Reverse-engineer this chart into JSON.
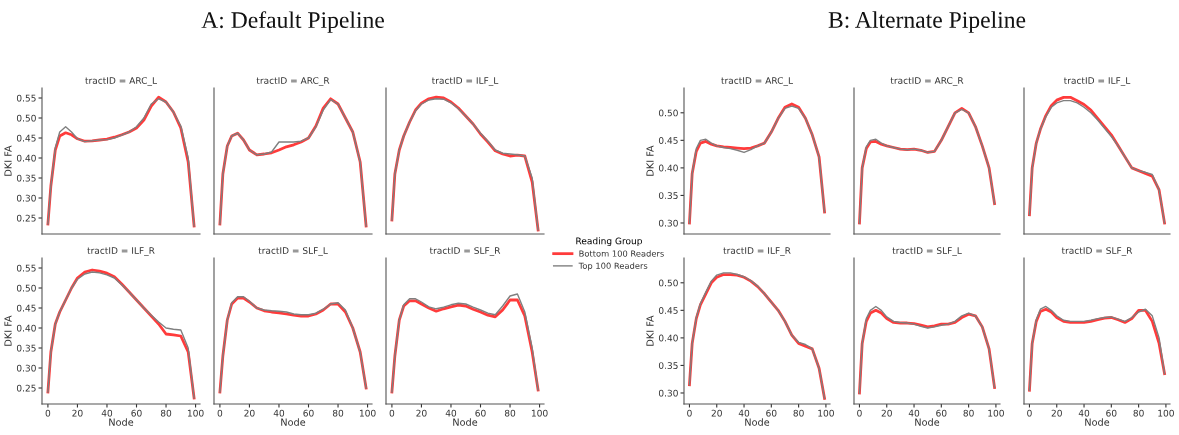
{
  "chart_data": [
    {
      "type": "line",
      "title": "tractID = ARC_L",
      "annotations": [
        "A: Default Pipeline"
      ],
      "ylabel": "DKI FA",
      "x": [
        0,
        2,
        5,
        8,
        12,
        16,
        20,
        25,
        30,
        35,
        40,
        45,
        50,
        55,
        60,
        65,
        70,
        75,
        80,
        85,
        90,
        95,
        99
      ],
      "xlim": [
        -4,
        103
      ],
      "ylim": [
        0.21,
        0.575
      ],
      "yticks": [
        {
          "value": 0.25,
          "label": "0.25"
        },
        {
          "value": 0.3,
          "label": "0.30"
        },
        {
          "value": 0.35,
          "label": "0.35"
        },
        {
          "value": 0.4,
          "label": "0.40"
        },
        {
          "value": 0.45,
          "label": "0.45"
        },
        {
          "value": 0.5,
          "label": "0.50"
        },
        {
          "value": 0.55,
          "label": "0.55"
        }
      ],
      "tick_labels": "y",
      "grid": false,
      "series": [
        {
          "color": "#ff3b3b",
          "values": [
            0.235,
            0.33,
            0.42,
            0.455,
            0.463,
            0.458,
            0.448,
            0.442,
            0.443,
            0.445,
            0.447,
            0.452,
            0.458,
            0.465,
            0.475,
            0.495,
            0.53,
            0.552,
            0.54,
            0.515,
            0.475,
            0.39,
            0.23
          ]
        },
        {
          "color": "#7f7f7f",
          "values": [
            0.235,
            0.33,
            0.425,
            0.465,
            0.478,
            0.465,
            0.448,
            0.441,
            0.443,
            0.445,
            0.446,
            0.45,
            0.457,
            0.465,
            0.478,
            0.5,
            0.535,
            0.548,
            0.54,
            0.515,
            0.48,
            0.4,
            0.23
          ]
        }
      ]
    },
    {
      "type": "line",
      "title": "tractID = ARC_R",
      "x": [
        0,
        2,
        5,
        8,
        12,
        16,
        20,
        25,
        30,
        35,
        40,
        45,
        50,
        55,
        60,
        65,
        70,
        75,
        80,
        85,
        90,
        95,
        99
      ],
      "xlim": [
        -4,
        103
      ],
      "ylim": [
        0.21,
        0.575
      ],
      "tick_labels": false,
      "grid": false,
      "series": [
        {
          "color": "#ff3b3b",
          "values": [
            0.235,
            0.36,
            0.43,
            0.455,
            0.462,
            0.445,
            0.42,
            0.408,
            0.41,
            0.413,
            0.42,
            0.428,
            0.433,
            0.44,
            0.45,
            0.48,
            0.525,
            0.548,
            0.535,
            0.5,
            0.465,
            0.39,
            0.23
          ]
        },
        {
          "color": "#7f7f7f",
          "values": [
            0.235,
            0.36,
            0.43,
            0.455,
            0.462,
            0.445,
            0.42,
            0.408,
            0.41,
            0.415,
            0.44,
            0.44,
            0.44,
            0.442,
            0.45,
            0.478,
            0.52,
            0.546,
            0.535,
            0.5,
            0.465,
            0.39,
            0.23
          ]
        }
      ]
    },
    {
      "type": "line",
      "title": "tractID = ILF_L",
      "legend": "right",
      "legend_title": "Reading Group",
      "x": [
        0,
        2,
        5,
        8,
        12,
        16,
        20,
        25,
        30,
        35,
        40,
        45,
        50,
        55,
        60,
        65,
        70,
        75,
        80,
        85,
        90,
        95,
        99
      ],
      "xlim": [
        -4,
        103
      ],
      "ylim": [
        0.21,
        0.575
      ],
      "tick_labels": false,
      "grid": false,
      "series": [
        {
          "name": "Bottom 100 Readers",
          "color": "#ff3b3b",
          "values": [
            0.245,
            0.36,
            0.42,
            0.455,
            0.49,
            0.52,
            0.537,
            0.548,
            0.552,
            0.55,
            0.54,
            0.525,
            0.505,
            0.485,
            0.46,
            0.44,
            0.418,
            0.41,
            0.405,
            0.407,
            0.405,
            0.34,
            0.22
          ]
        },
        {
          "name": "Top 100 Readers",
          "color": "#7f7f7f",
          "values": [
            0.245,
            0.36,
            0.42,
            0.455,
            0.49,
            0.518,
            0.535,
            0.545,
            0.548,
            0.547,
            0.538,
            0.523,
            0.505,
            0.485,
            0.462,
            0.442,
            0.42,
            0.412,
            0.41,
            0.408,
            0.405,
            0.35,
            0.22
          ]
        }
      ]
    },
    {
      "type": "line",
      "title": "tractID = ILF_R",
      "ylabel": "DKI FA",
      "xlabel": "Node",
      "x": [
        0,
        2,
        5,
        8,
        12,
        16,
        20,
        25,
        30,
        35,
        40,
        45,
        50,
        55,
        60,
        65,
        70,
        75,
        80,
        85,
        90,
        95,
        99
      ],
      "xlim": [
        -4,
        103
      ],
      "xticks": [
        0,
        20,
        40,
        60,
        80,
        100
      ],
      "ylim": [
        0.21,
        0.575
      ],
      "yticks": [
        {
          "value": 0.25,
          "label": "0.25"
        },
        {
          "value": 0.3,
          "label": "0.30"
        },
        {
          "value": 0.35,
          "label": "0.35"
        },
        {
          "value": 0.4,
          "label": "0.40"
        },
        {
          "value": 0.45,
          "label": "0.45"
        },
        {
          "value": 0.5,
          "label": "0.50"
        },
        {
          "value": 0.55,
          "label": "0.55"
        }
      ],
      "grid": false,
      "series": [
        {
          "color": "#ff3b3b",
          "values": [
            0.24,
            0.34,
            0.41,
            0.44,
            0.47,
            0.5,
            0.525,
            0.54,
            0.545,
            0.542,
            0.537,
            0.528,
            0.51,
            0.49,
            0.47,
            0.45,
            0.43,
            0.41,
            0.385,
            0.383,
            0.38,
            0.34,
            0.225
          ]
        },
        {
          "color": "#7f7f7f",
          "values": [
            0.24,
            0.34,
            0.41,
            0.44,
            0.47,
            0.5,
            0.522,
            0.535,
            0.54,
            0.538,
            0.533,
            0.525,
            0.508,
            0.49,
            0.47,
            0.45,
            0.432,
            0.415,
            0.4,
            0.397,
            0.395,
            0.35,
            0.225
          ]
        }
      ]
    },
    {
      "type": "line",
      "title": "tractID = SLF_L",
      "xlabel": "Node",
      "x": [
        0,
        2,
        5,
        8,
        12,
        16,
        20,
        25,
        30,
        35,
        40,
        45,
        50,
        55,
        60,
        65,
        70,
        75,
        80,
        85,
        90,
        95,
        99
      ],
      "xlim": [
        -4,
        103
      ],
      "xticks": [
        0,
        20,
        40,
        60,
        80,
        100
      ],
      "ylim": [
        0.21,
        0.575
      ],
      "tick_labels": "x",
      "grid": false,
      "series": [
        {
          "color": "#ff3b3b",
          "values": [
            0.24,
            0.33,
            0.42,
            0.46,
            0.475,
            0.475,
            0.465,
            0.45,
            0.443,
            0.44,
            0.438,
            0.435,
            0.432,
            0.43,
            0.43,
            0.435,
            0.445,
            0.46,
            0.46,
            0.44,
            0.4,
            0.34,
            0.25
          ]
        },
        {
          "color": "#7f7f7f",
          "values": [
            0.24,
            0.33,
            0.42,
            0.463,
            0.478,
            0.478,
            0.467,
            0.45,
            0.445,
            0.443,
            0.442,
            0.44,
            0.435,
            0.433,
            0.433,
            0.437,
            0.447,
            0.46,
            0.463,
            0.445,
            0.4,
            0.34,
            0.25
          ]
        }
      ]
    },
    {
      "type": "line",
      "title": "tractID = SLF_R",
      "xlabel": "Node",
      "x": [
        0,
        2,
        5,
        8,
        12,
        16,
        20,
        25,
        30,
        35,
        40,
        45,
        50,
        55,
        60,
        65,
        70,
        75,
        80,
        85,
        90,
        95,
        99
      ],
      "xlim": [
        -4,
        103
      ],
      "xticks": [
        0,
        20,
        40,
        60,
        80,
        100
      ],
      "ylim": [
        0.21,
        0.575
      ],
      "tick_labels": "x",
      "grid": false,
      "series": [
        {
          "color": "#ff3b3b",
          "values": [
            0.24,
            0.33,
            0.42,
            0.455,
            0.468,
            0.468,
            0.46,
            0.45,
            0.442,
            0.448,
            0.453,
            0.457,
            0.455,
            0.447,
            0.44,
            0.432,
            0.428,
            0.445,
            0.47,
            0.47,
            0.43,
            0.34,
            0.245
          ]
        },
        {
          "color": "#7f7f7f",
          "values": [
            0.24,
            0.33,
            0.42,
            0.458,
            0.473,
            0.473,
            0.465,
            0.453,
            0.448,
            0.452,
            0.458,
            0.462,
            0.46,
            0.452,
            0.445,
            0.437,
            0.433,
            0.455,
            0.48,
            0.485,
            0.44,
            0.35,
            0.245
          ]
        }
      ]
    },
    {
      "type": "line",
      "title": "tractID = ARC_L",
      "annotations": [
        "B: Alternate Pipeline"
      ],
      "ylabel": "DKI FA",
      "x": [
        0,
        2,
        5,
        8,
        12,
        16,
        20,
        25,
        30,
        35,
        40,
        45,
        50,
        55,
        60,
        65,
        70,
        75,
        80,
        85,
        90,
        95,
        99
      ],
      "xlim": [
        -4,
        103
      ],
      "ylim": [
        0.28,
        0.545
      ],
      "yticks": [
        {
          "value": 0.3,
          "label": "0.30"
        },
        {
          "value": 0.35,
          "label": "0.35"
        },
        {
          "value": 0.4,
          "label": "0.40"
        },
        {
          "value": 0.45,
          "label": "0.45"
        },
        {
          "value": 0.5,
          "label": "0.50"
        }
      ],
      "tick_labels": "y",
      "grid": false,
      "series": [
        {
          "color": "#ff3b3b",
          "values": [
            0.3,
            0.39,
            0.43,
            0.445,
            0.448,
            0.443,
            0.44,
            0.438,
            0.437,
            0.436,
            0.435,
            0.436,
            0.44,
            0.445,
            0.465,
            0.49,
            0.51,
            0.516,
            0.51,
            0.49,
            0.46,
            0.42,
            0.32
          ]
        },
        {
          "color": "#7f7f7f",
          "values": [
            0.3,
            0.39,
            0.435,
            0.45,
            0.452,
            0.445,
            0.44,
            0.437,
            0.435,
            0.432,
            0.428,
            0.433,
            0.44,
            0.445,
            0.465,
            0.49,
            0.508,
            0.512,
            0.508,
            0.49,
            0.46,
            0.42,
            0.32
          ]
        }
      ]
    },
    {
      "type": "line",
      "title": "tractID = ARC_R",
      "x": [
        0,
        2,
        5,
        8,
        12,
        16,
        20,
        25,
        30,
        35,
        40,
        45,
        50,
        55,
        60,
        65,
        70,
        75,
        80,
        85,
        90,
        95,
        99
      ],
      "xlim": [
        -4,
        103
      ],
      "ylim": [
        0.28,
        0.545
      ],
      "tick_labels": false,
      "grid": false,
      "series": [
        {
          "color": "#ff3b3b",
          "values": [
            0.3,
            0.4,
            0.435,
            0.447,
            0.448,
            0.443,
            0.44,
            0.437,
            0.434,
            0.433,
            0.434,
            0.432,
            0.428,
            0.43,
            0.45,
            0.475,
            0.5,
            0.508,
            0.5,
            0.475,
            0.44,
            0.4,
            0.335
          ]
        },
        {
          "color": "#7f7f7f",
          "values": [
            0.3,
            0.4,
            0.438,
            0.45,
            0.452,
            0.445,
            0.44,
            0.437,
            0.434,
            0.433,
            0.434,
            0.432,
            0.428,
            0.43,
            0.45,
            0.475,
            0.5,
            0.506,
            0.5,
            0.475,
            0.44,
            0.4,
            0.335
          ]
        }
      ]
    },
    {
      "type": "line",
      "title": "tractID = ILF_L",
      "x": [
        0,
        2,
        5,
        8,
        12,
        16,
        20,
        25,
        30,
        35,
        40,
        45,
        50,
        55,
        60,
        65,
        70,
        75,
        80,
        85,
        90,
        95,
        99
      ],
      "xlim": [
        -4,
        103
      ],
      "ylim": [
        0.28,
        0.545
      ],
      "tick_labels": false,
      "grid": false,
      "series": [
        {
          "color": "#ff3b3b",
          "values": [
            0.315,
            0.4,
            0.445,
            0.47,
            0.495,
            0.513,
            0.523,
            0.528,
            0.528,
            0.522,
            0.515,
            0.505,
            0.49,
            0.475,
            0.46,
            0.44,
            0.42,
            0.4,
            0.395,
            0.39,
            0.385,
            0.36,
            0.3
          ]
        },
        {
          "color": "#7f7f7f",
          "values": [
            0.315,
            0.4,
            0.445,
            0.47,
            0.493,
            0.51,
            0.518,
            0.522,
            0.522,
            0.518,
            0.51,
            0.5,
            0.487,
            0.472,
            0.457,
            0.44,
            0.42,
            0.4,
            0.395,
            0.392,
            0.388,
            0.36,
            0.3
          ]
        }
      ]
    },
    {
      "type": "line",
      "title": "tractID = ILF_R",
      "ylabel": "DKI FA",
      "xlabel": "Node",
      "x": [
        0,
        2,
        5,
        8,
        12,
        16,
        20,
        25,
        30,
        35,
        40,
        45,
        50,
        55,
        60,
        65,
        70,
        75,
        80,
        85,
        90,
        95,
        99
      ],
      "xlim": [
        -4,
        103
      ],
      "xticks": [
        0,
        20,
        40,
        60,
        80,
        100
      ],
      "ylim": [
        0.28,
        0.545
      ],
      "yticks": [
        {
          "value": 0.3,
          "label": "0.30"
        },
        {
          "value": 0.35,
          "label": "0.35"
        },
        {
          "value": 0.4,
          "label": "0.40"
        },
        {
          "value": 0.45,
          "label": "0.45"
        },
        {
          "value": 0.5,
          "label": "0.50"
        }
      ],
      "grid": false,
      "series": [
        {
          "color": "#ff3b3b",
          "values": [
            0.315,
            0.39,
            0.435,
            0.46,
            0.48,
            0.5,
            0.51,
            0.515,
            0.515,
            0.514,
            0.51,
            0.503,
            0.493,
            0.48,
            0.465,
            0.45,
            0.43,
            0.405,
            0.39,
            0.385,
            0.38,
            0.345,
            0.29
          ]
        },
        {
          "color": "#7f7f7f",
          "values": [
            0.315,
            0.39,
            0.437,
            0.462,
            0.483,
            0.503,
            0.514,
            0.518,
            0.518,
            0.515,
            0.511,
            0.504,
            0.494,
            0.48,
            0.465,
            0.45,
            0.43,
            0.405,
            0.392,
            0.388,
            0.38,
            0.345,
            0.29
          ]
        }
      ]
    },
    {
      "type": "line",
      "title": "tractID = SLF_L",
      "xlabel": "Node",
      "x": [
        0,
        2,
        5,
        8,
        12,
        16,
        20,
        25,
        30,
        35,
        40,
        45,
        50,
        55,
        60,
        65,
        70,
        75,
        80,
        85,
        90,
        95,
        99
      ],
      "xlim": [
        -4,
        103
      ],
      "xticks": [
        0,
        20,
        40,
        60,
        80,
        100
      ],
      "ylim": [
        0.28,
        0.545
      ],
      "tick_labels": "x",
      "grid": false,
      "series": [
        {
          "color": "#ff3b3b",
          "values": [
            0.3,
            0.39,
            0.43,
            0.445,
            0.45,
            0.445,
            0.435,
            0.428,
            0.427,
            0.427,
            0.426,
            0.423,
            0.42,
            0.422,
            0.425,
            0.425,
            0.428,
            0.437,
            0.443,
            0.44,
            0.42,
            0.38,
            0.31
          ]
        },
        {
          "color": "#7f7f7f",
          "values": [
            0.3,
            0.39,
            0.435,
            0.45,
            0.457,
            0.45,
            0.438,
            0.43,
            0.428,
            0.427,
            0.425,
            0.421,
            0.418,
            0.42,
            0.423,
            0.425,
            0.43,
            0.44,
            0.445,
            0.44,
            0.42,
            0.38,
            0.31
          ]
        }
      ]
    },
    {
      "type": "line",
      "title": "tractID = SLF_R",
      "xlabel": "Node",
      "x": [
        0,
        2,
        5,
        8,
        12,
        16,
        20,
        25,
        30,
        35,
        40,
        45,
        50,
        55,
        60,
        65,
        70,
        75,
        80,
        85,
        90,
        95,
        99
      ],
      "xlim": [
        -4,
        103
      ],
      "xticks": [
        0,
        20,
        40,
        60,
        80,
        100
      ],
      "ylim": [
        0.28,
        0.545
      ],
      "tick_labels": "x",
      "grid": false,
      "series": [
        {
          "color": "#ff3b3b",
          "values": [
            0.305,
            0.39,
            0.43,
            0.448,
            0.452,
            0.447,
            0.437,
            0.43,
            0.428,
            0.428,
            0.428,
            0.43,
            0.433,
            0.436,
            0.437,
            0.433,
            0.428,
            0.435,
            0.45,
            0.45,
            0.43,
            0.39,
            0.335
          ]
        },
        {
          "color": "#7f7f7f",
          "values": [
            0.305,
            0.39,
            0.433,
            0.452,
            0.457,
            0.45,
            0.44,
            0.432,
            0.43,
            0.43,
            0.43,
            0.432,
            0.435,
            0.437,
            0.438,
            0.434,
            0.43,
            0.437,
            0.447,
            0.452,
            0.44,
            0.4,
            0.335
          ]
        }
      ]
    }
  ]
}
